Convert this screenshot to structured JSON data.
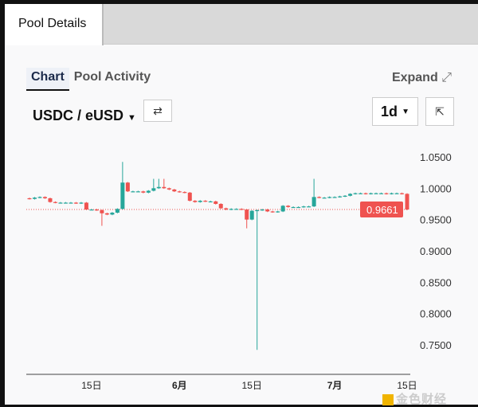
{
  "tabs": {
    "active": "Pool Details"
  },
  "subtabs": [
    {
      "label": "Chart",
      "active": true
    },
    {
      "label": "Pool Activity",
      "active": false
    }
  ],
  "expand_label": "Expand",
  "pair_label": "USDC / eUSD",
  "interval": "1d",
  "watermark": "金色财经",
  "colors": {
    "up": "#26a69a",
    "down": "#ef5350",
    "price_line": "#ef5350"
  },
  "chart_data": {
    "type": "candlestick",
    "current_price": "0.9661",
    "current_value": 0.9661,
    "ylim": [
      0.73,
      1.06
    ],
    "y_ticks": [
      "1.0500",
      "1.0000",
      "0.9500",
      "0.9000",
      "0.8500",
      "0.8000",
      "0.7500"
    ],
    "x_ticks": [
      {
        "label": "15日",
        "index": 12
      },
      {
        "label": "6月",
        "index": 29,
        "bold": true
      },
      {
        "label": "15日",
        "index": 43
      },
      {
        "label": "7月",
        "index": 59,
        "bold": true
      },
      {
        "label": "15日",
        "index": 73
      }
    ],
    "closes": [
      0.983,
      0.985,
      0.986,
      0.984,
      0.978,
      0.977,
      0.977,
      0.977,
      0.977,
      0.976,
      0.977,
      0.966,
      0.966,
      0.965,
      0.96,
      0.958,
      0.961,
      0.967,
      1.009,
      0.995,
      0.995,
      0.995,
      0.993,
      0.996,
      1.0,
      1.002,
      1.0,
      0.998,
      0.995,
      0.994,
      0.993,
      0.98,
      0.978,
      0.98,
      0.979,
      0.979,
      0.975,
      0.968,
      0.966,
      0.967,
      0.967,
      0.966,
      0.95,
      0.964,
      0.965,
      0.966,
      0.963,
      0.962,
      0.963,
      0.972,
      0.97,
      0.97,
      0.97,
      0.971,
      0.971,
      0.986,
      0.985,
      0.985,
      0.986,
      0.986,
      0.987,
      0.988,
      0.991,
      0.992,
      0.992,
      0.991,
      0.992,
      0.992,
      0.992,
      0.991,
      0.992,
      0.992,
      0.991,
      0.966
    ],
    "extremes": {
      "14": {
        "l": 0.94
      },
      "18": {
        "h": 1.042
      },
      "24": {
        "h": 1.015
      },
      "25": {
        "h": 1.015
      },
      "26": {
        "h": 1.015
      },
      "42": {
        "l": 0.936
      },
      "44": {
        "l": 0.742
      },
      "55": {
        "h": 1.015
      }
    }
  }
}
